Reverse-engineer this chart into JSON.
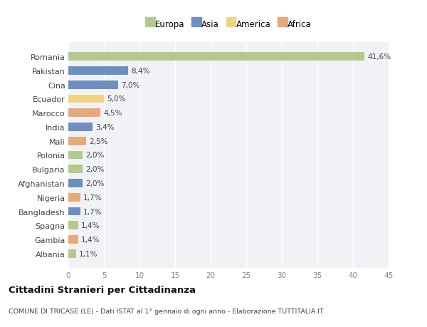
{
  "categories": [
    "Romania",
    "Pakistan",
    "Cina",
    "Ecuador",
    "Marocco",
    "India",
    "Mali",
    "Polonia",
    "Bulgaria",
    "Afghanistan",
    "Nigeria",
    "Bangladesh",
    "Spagna",
    "Gambia",
    "Albania"
  ],
  "values": [
    41.6,
    8.4,
    7.0,
    5.0,
    4.5,
    3.4,
    2.5,
    2.0,
    2.0,
    2.0,
    1.7,
    1.7,
    1.4,
    1.4,
    1.1
  ],
  "labels": [
    "41,6%",
    "8,4%",
    "7,0%",
    "5,0%",
    "4,5%",
    "3,4%",
    "2,5%",
    "2,0%",
    "2,0%",
    "2,0%",
    "1,7%",
    "1,7%",
    "1,4%",
    "1,4%",
    "1,1%"
  ],
  "continents": [
    "Europa",
    "Asia",
    "Asia",
    "America",
    "Africa",
    "Asia",
    "Africa",
    "Europa",
    "Europa",
    "Asia",
    "Africa",
    "Asia",
    "Europa",
    "Africa",
    "Europa"
  ],
  "colors": {
    "Europa": "#b5c98e",
    "Asia": "#6d8fc2",
    "America": "#f2d47e",
    "Africa": "#e8a97a"
  },
  "legend_order": [
    "Europa",
    "Asia",
    "America",
    "Africa"
  ],
  "fig_bg": "#ffffff",
  "plot_bg": "#f0f2f5",
  "title": "Cittadini Stranieri per Cittadinanza",
  "subtitle": "COMUNE DI TRICASE (LE) - Dati ISTAT al 1° gennaio di ogni anno - Elaborazione TUTTITALIA.IT",
  "xlim": [
    0,
    45
  ],
  "xticks": [
    0,
    5,
    10,
    15,
    20,
    25,
    30,
    35,
    40,
    45
  ]
}
